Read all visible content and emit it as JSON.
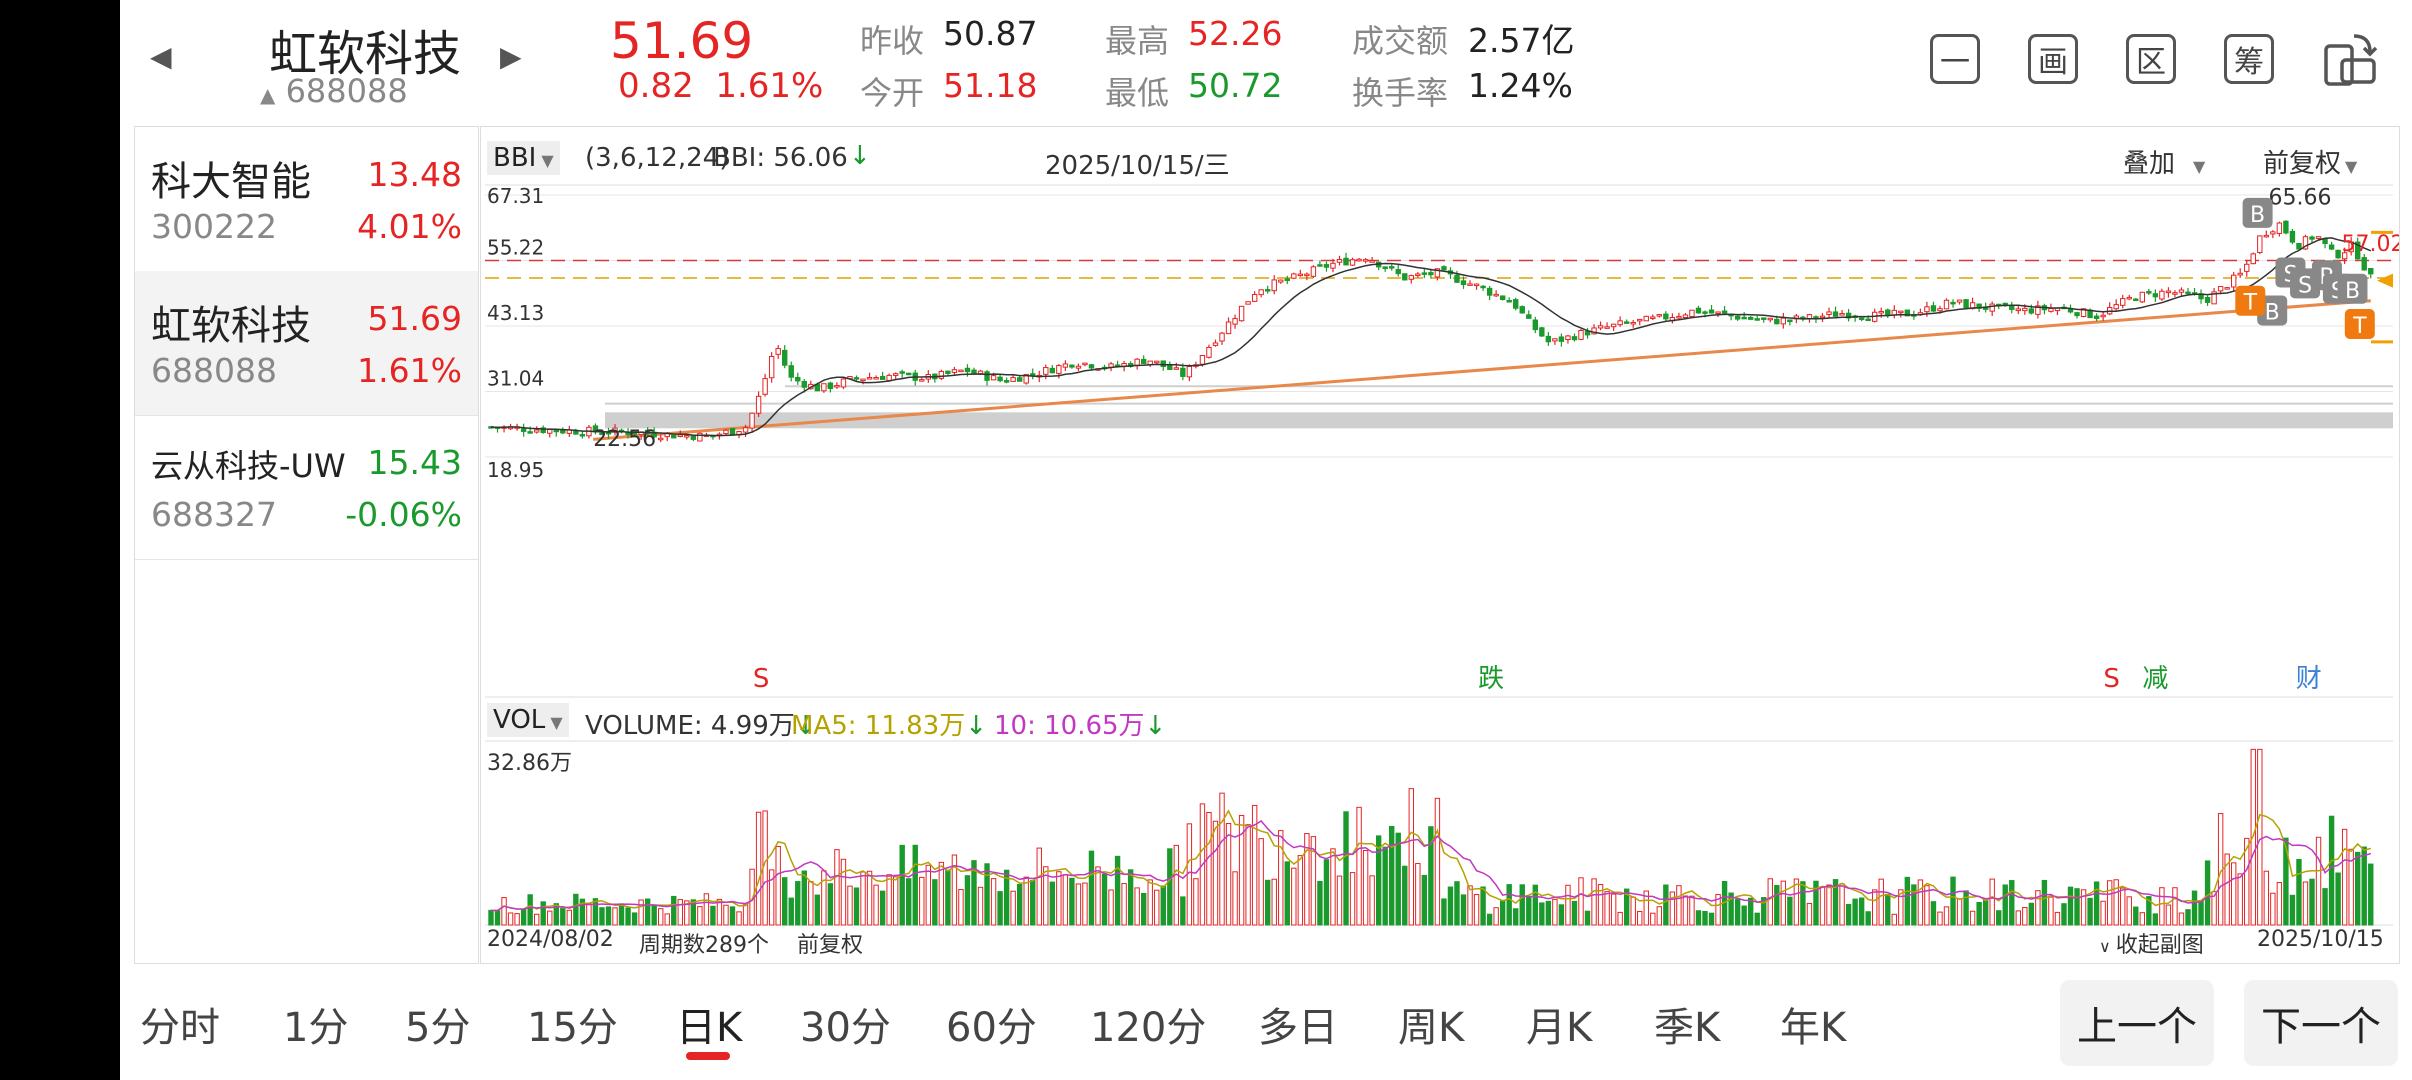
{
  "header": {
    "name": "虹软科技",
    "code": "688088",
    "price": "51.69",
    "change": "0.82  1.61%",
    "prev_close_label": "昨收",
    "prev_close": "50.87",
    "open_label": "今开",
    "open": "51.18",
    "high_label": "最高",
    "high": "52.26",
    "low_label": "最低",
    "low": "50.72",
    "amount_label": "成交额",
    "amount": "2.57亿",
    "turnover_label": "换手率",
    "turnover": "1.24%",
    "icons": [
      {
        "name": "minus-icon",
        "glyph": "一"
      },
      {
        "name": "draw-icon",
        "glyph": "画"
      },
      {
        "name": "interval-icon",
        "glyph": "区"
      },
      {
        "name": "chips-icon",
        "glyph": "筹"
      },
      {
        "name": "rotate-screen-icon",
        "glyph": "▯"
      }
    ]
  },
  "watchlist": [
    {
      "name": "科大智能",
      "code": "300222",
      "price": "13.48",
      "pct": "4.01%",
      "dir": "up"
    },
    {
      "name": "虹软科技",
      "code": "688088",
      "price": "51.69",
      "pct": "1.61%",
      "dir": "up",
      "selected": true
    },
    {
      "name": "云从科技-UW",
      "code": "688327",
      "price": "15.43",
      "pct": "-0.06%",
      "dir": "down"
    }
  ],
  "main_chart": {
    "indicator": "BBI",
    "indicator_params": "(3,6,12,24)",
    "indicator_value": "BBI: 56.06",
    "date": "2025/10/15/三",
    "overlay": "叠加",
    "adjust": "前复权",
    "y_ticks": [
      "67.31",
      "55.22",
      "43.13",
      "31.04",
      "18.95"
    ],
    "high_label": "65.66",
    "low_label": "22.56",
    "last_label": "57.02",
    "signals": [
      {
        "text": "S",
        "color": "#e52424"
      },
      {
        "text": "跌",
        "color": "#1a9a2c"
      },
      {
        "text": "S",
        "color": "#e52424"
      },
      {
        "text": "减",
        "color": "#1a9a2c"
      },
      {
        "text": "财",
        "color": "#3b82d6"
      },
      {
        "text": "S",
        "color": "#e52424"
      }
    ]
  },
  "volume_chart": {
    "indicator": "VOL",
    "volume": "VOLUME: 4.99万",
    "ma5": "MA5: 11.83万",
    "ma10": "10: 10.65万",
    "max_tick": "32.86万",
    "start_date": "2024/08/02",
    "period_count": "周期数289个",
    "adjust": "前复权",
    "collapse": "收起副图",
    "end_date": "2025/10/15",
    "colors": {
      "ma5": "#b5a200",
      "ma10": "#c238c2"
    }
  },
  "chart_data": {
    "type": "candlestick",
    "x_start": "2024/08/02",
    "x_end": "2025/10/15",
    "bars": 289,
    "ylim": [
      18.95,
      67.31
    ],
    "close_path": [
      [
        0,
        24.5
      ],
      [
        20,
        23.8
      ],
      [
        40,
        23.5
      ],
      [
        50,
        23.0
      ],
      [
        60,
        22.8
      ],
      [
        70,
        24.5
      ],
      [
        74,
        31.0
      ],
      [
        78,
        40.0
      ],
      [
        82,
        33.5
      ],
      [
        90,
        31.5
      ],
      [
        100,
        33.5
      ],
      [
        110,
        34.0
      ],
      [
        120,
        33.5
      ],
      [
        130,
        35.0
      ],
      [
        140,
        33.0
      ],
      [
        150,
        34.5
      ],
      [
        160,
        36.5
      ],
      [
        170,
        35.5
      ],
      [
        180,
        37.0
      ],
      [
        190,
        34.0
      ],
      [
        200,
        42.0
      ],
      [
        210,
        50.0
      ],
      [
        220,
        52.0
      ],
      [
        230,
        54.5
      ],
      [
        240,
        56.0
      ],
      [
        250,
        52.0
      ],
      [
        260,
        53.0
      ],
      [
        270,
        50.5
      ],
      [
        280,
        47.5
      ],
      [
        284,
        44.0
      ],
      [
        290,
        40.0
      ],
      [
        300,
        42.0
      ],
      [
        310,
        43.5
      ],
      [
        320,
        44.5
      ],
      [
        330,
        46.0
      ],
      [
        340,
        45.0
      ],
      [
        350,
        44.0
      ],
      [
        360,
        44.5
      ],
      [
        370,
        45.5
      ],
      [
        380,
        45.0
      ],
      [
        390,
        45.5
      ],
      [
        400,
        47.5
      ],
      [
        410,
        46.5
      ],
      [
        420,
        46.0
      ],
      [
        430,
        46.5
      ],
      [
        440,
        45.0
      ],
      [
        450,
        48.5
      ],
      [
        460,
        49.5
      ],
      [
        470,
        48.0
      ],
      [
        480,
        53.0
      ],
      [
        485,
        60.0
      ],
      [
        490,
        62.0
      ],
      [
        495,
        58.0
      ],
      [
        500,
        60.0
      ],
      [
        505,
        56.0
      ],
      [
        510,
        58.0
      ],
      [
        515,
        52.0
      ]
    ],
    "ma_lines": [
      "BBI"
    ],
    "h_lines": [
      55.22,
      52.0
    ],
    "trendline": [
      [
        28,
        22.2
      ],
      [
        515,
        47.8
      ]
    ]
  }
}
